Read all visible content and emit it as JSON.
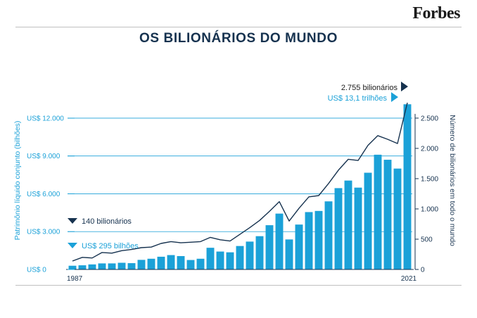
{
  "brand": "Forbes",
  "header": {
    "title": "OS BILIONÁRIOS DO MUNDO"
  },
  "chart_data": {
    "type": "bar",
    "title": "OS BILIONÁRIOS DO MUNDO",
    "ylabel": "Patrimônio líquido conjunto (bilhões)",
    "y2label": "Número de bilionários em todo o mundo",
    "ylim": [
      0,
      13000
    ],
    "y2lim": [
      0,
      2708
    ],
    "yticks": [
      0,
      3000,
      6000,
      9000,
      12000
    ],
    "ytick_labels": [
      "US$ 0",
      "US$ 3.000",
      "US$ 6.000",
      "US$ 9.000",
      "US$ 12.000"
    ],
    "y2ticks": [
      0,
      500,
      1000,
      1500,
      2000,
      2500
    ],
    "y2tick_labels": [
      "0",
      "500",
      "1.000",
      "1.500",
      "2.000",
      "2.500"
    ],
    "x_first_label": "1987",
    "x_last_label": "2021",
    "x": [
      1987,
      1988,
      1989,
      1990,
      1991,
      1992,
      1993,
      1994,
      1995,
      1996,
      1997,
      1998,
      1999,
      2000,
      2001,
      2002,
      2003,
      2004,
      2005,
      2006,
      2007,
      2008,
      2009,
      2010,
      2011,
      2012,
      2013,
      2014,
      2015,
      2016,
      2017,
      2018,
      2019,
      2020,
      2021
    ],
    "series": [
      {
        "type": "bar",
        "values": [
          295,
          330,
          400,
          480,
          480,
          530,
          500,
          760,
          850,
          1010,
          1140,
          1060,
          750,
          850,
          1720,
          1420,
          1360,
          1860,
          2210,
          2640,
          3510,
          4430,
          2380,
          3560,
          4550,
          4640,
          5400,
          6450,
          7050,
          6490,
          7670,
          9100,
          8700,
          8000,
          13100
        ]
      },
      {
        "type": "line",
        "values": [
          140,
          200,
          190,
          280,
          270,
          310,
          330,
          360,
          370,
          430,
          460,
          440,
          450,
          460,
          530,
          490,
          470,
          580,
          690,
          810,
          960,
          1120,
          800,
          1010,
          1200,
          1220,
          1420,
          1640,
          1820,
          1800,
          2050,
          2210,
          2150,
          2080,
          2755
        ]
      }
    ],
    "annotations": [
      {
        "text": "140 bilionários",
        "series": "line",
        "year": 1987
      },
      {
        "text": "US$ 295 bilhões",
        "series": "bar",
        "year": 1987
      },
      {
        "text": "2.755 bilionários",
        "series": "line",
        "year": 2021
      },
      {
        "text": "US$ 13,1 trilhões",
        "series": "bar",
        "year": 2021
      }
    ],
    "colors": {
      "bar": "#1ba1d8",
      "line": "#16324f",
      "grid": "#1ba1d8"
    }
  }
}
